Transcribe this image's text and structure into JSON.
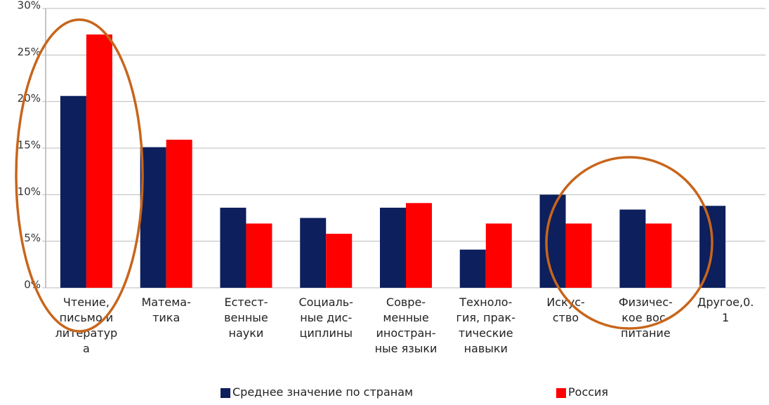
{
  "chart_data": {
    "type": "bar",
    "categories": [
      "Чтение,\nписьмо и\nлитератур\nа",
      "Матема-\nтика",
      "Естест-\nвенные\nнауки",
      "Социаль-\nные дис-\nциплины",
      "Совре-\nменные\nиностран-\nные языки",
      "Техноло-\nгия, прак-\nтические\nнавыки",
      "Искус-\nство",
      "Физичес-\nкое вос-\nпитание",
      "Другое,0.\n1"
    ],
    "series": [
      {
        "name": "Среднее значение по странам",
        "color": "#0d1f5c",
        "values": [
          20.6,
          15.1,
          8.6,
          7.5,
          8.6,
          4.1,
          10.0,
          8.4,
          8.8
        ]
      },
      {
        "name": "Россия",
        "color": "#ff0000",
        "values": [
          27.2,
          15.9,
          6.9,
          5.8,
          9.1,
          6.9,
          6.9,
          6.9,
          null
        ]
      }
    ],
    "ylim": [
      0,
      30
    ],
    "yticks": [
      {
        "value": 0,
        "label": "0%"
      },
      {
        "value": 5,
        "label": "5%"
      },
      {
        "value": 10,
        "label": "10%"
      },
      {
        "value": 15,
        "label": "15%"
      },
      {
        "value": 20,
        "label": "20%"
      },
      {
        "value": 25,
        "label": "25%"
      },
      {
        "value": 30,
        "label": "30%"
      }
    ],
    "grid": true,
    "legend": "bottom"
  }
}
